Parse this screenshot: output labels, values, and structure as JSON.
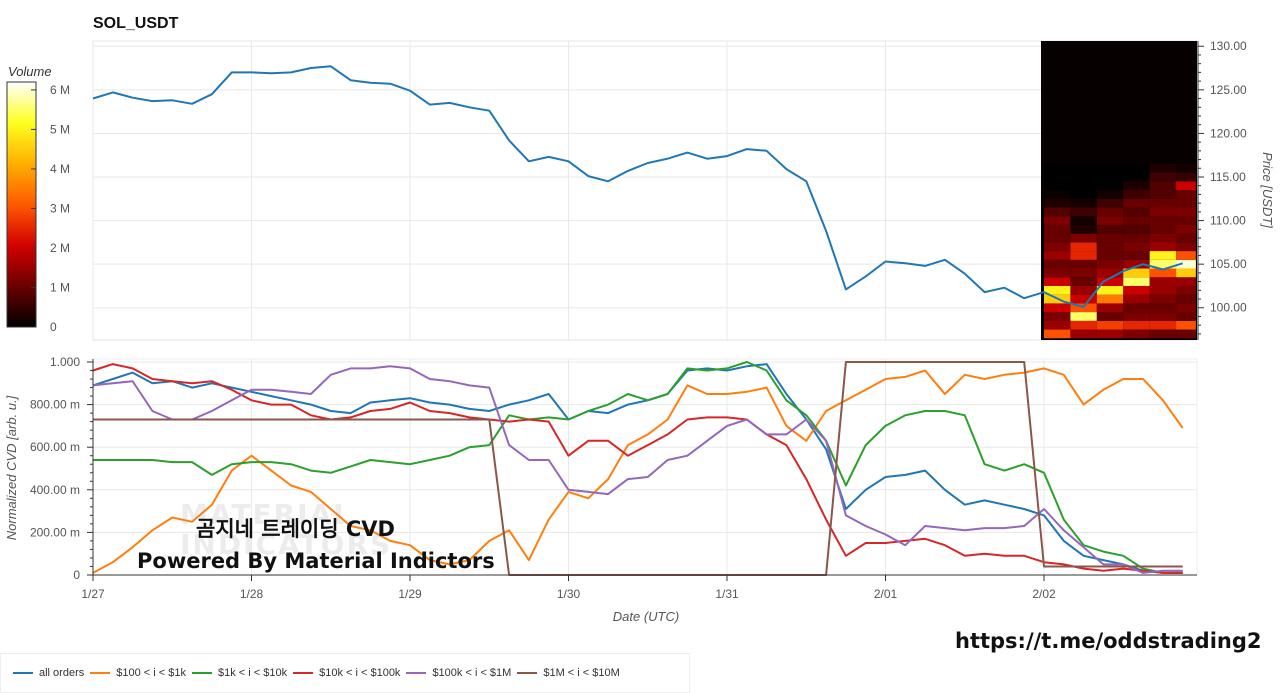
{
  "title": "SOL_USDT",
  "watermark": {
    "line1": "곰지네 트레이딩 CVD",
    "line2": "Powered By Material Indictors",
    "faint_logo": "MATERIAL INDICATORS"
  },
  "url": "https://t.me/oddstrading2",
  "chart_data": [
    {
      "type": "line",
      "name_panel": "price",
      "title": "SOL_USDT",
      "ylabel": "Price [USDT]",
      "ylim": [
        96.3,
        130.6
      ],
      "yticks": [
        "100.00",
        "105.00",
        "110.00",
        "115.00",
        "120.00",
        "125.00",
        "130.00"
      ],
      "xlim": [
        "1/27 00:00",
        "2/02 23:00"
      ],
      "grid": true,
      "color": "#1f77b4",
      "x": [
        "1/27 00:00",
        "1/27 03:00",
        "1/27 06:00",
        "1/27 09:00",
        "1/27 12:00",
        "1/27 15:00",
        "1/27 18:00",
        "1/27 21:00",
        "1/28 00:00",
        "1/28 03:00",
        "1/28 06:00",
        "1/28 09:00",
        "1/28 12:00",
        "1/28 15:00",
        "1/28 18:00",
        "1/28 21:00",
        "1/29 00:00",
        "1/29 03:00",
        "1/29 06:00",
        "1/29 09:00",
        "1/29 12:00",
        "1/29 15:00",
        "1/29 18:00",
        "1/29 21:00",
        "1/30 00:00",
        "1/30 03:00",
        "1/30 06:00",
        "1/30 09:00",
        "1/30 12:00",
        "1/30 15:00",
        "1/30 18:00",
        "1/30 21:00",
        "1/31 00:00",
        "1/31 03:00",
        "1/31 06:00",
        "1/31 09:00",
        "1/31 12:00",
        "1/31 15:00",
        "1/31 18:00",
        "1/31 21:00",
        "2/01 00:00",
        "2/01 03:00",
        "2/01 06:00",
        "2/01 09:00",
        "2/01 12:00",
        "2/01 15:00",
        "2/01 18:00",
        "2/01 21:00",
        "2/02 00:00",
        "2/02 03:00",
        "2/02 06:00",
        "2/02 09:00",
        "2/02 12:00",
        "2/02 15:00",
        "2/02 18:00",
        "2/02 21:00"
      ],
      "values": [
        124.0,
        124.7,
        124.1,
        123.7,
        123.8,
        123.4,
        124.5,
        127.0,
        127.0,
        126.9,
        127.0,
        127.5,
        127.7,
        126.1,
        125.8,
        125.7,
        124.9,
        123.3,
        123.5,
        123.0,
        122.6,
        119.2,
        116.8,
        117.3,
        116.8,
        115.1,
        114.5,
        115.7,
        116.6,
        117.1,
        117.8,
        117.1,
        117.4,
        118.2,
        118.0,
        115.9,
        114.5,
        108.8,
        102.1,
        103.6,
        105.3,
        105.1,
        104.8,
        105.5,
        103.9,
        101.8,
        102.3,
        101.1,
        101.8,
        100.7,
        100.1,
        103.0,
        104.2,
        105.0,
        104.4,
        105.1
      ],
      "heatmap": {
        "colorbar_label": "Volume",
        "colorbar_ticks": [
          "0",
          "1 M",
          "2 M",
          "3 M",
          "4 M",
          "5 M",
          "6 M"
        ],
        "range_M": [
          0,
          6.2
        ],
        "colormap": [
          "#000000",
          "#6b0000",
          "#d40000",
          "#ff5a00",
          "#ffb000",
          "#ffff20",
          "#ffffff"
        ],
        "price_levels": [
          97,
          98,
          99,
          100,
          101,
          102,
          103,
          104,
          105,
          106,
          107,
          108,
          109,
          110,
          111,
          112,
          113,
          114,
          115,
          116
        ],
        "columns": [
          {
            "start": "2/02 00:00",
            "end": "2/02 04:00",
            "volume_M": [
              3.0,
              1.5,
              1.2,
              2.0,
              4.5,
              5.0,
              2.0,
              1.2,
              1.0,
              1.5,
              1.2,
              1.0,
              1.0,
              1.2,
              0.8,
              0.3,
              0.1,
              0,
              0,
              0
            ]
          },
          {
            "start": "2/02 04:00",
            "end": "2/02 08:00",
            "volume_M": [
              1.5,
              2.5,
              5.5,
              3.0,
              2.0,
              1.5,
              1.0,
              1.2,
              1.0,
              2.5,
              2.5,
              1.2,
              0.3,
              0.2,
              0.6,
              0.2,
              0,
              0,
              0,
              0
            ]
          },
          {
            "start": "2/02 08:00",
            "end": "2/02 12:00",
            "volume_M": [
              1.5,
              2.8,
              1.0,
              1.5,
              3.5,
              5.0,
              2.0,
              1.5,
              1.2,
              1.0,
              1.0,
              1.0,
              0.8,
              1.2,
              1.0,
              0.6,
              0.2,
              0,
              0,
              0
            ]
          },
          {
            "start": "2/02 12:00",
            "end": "2/02 16:00",
            "volume_M": [
              1.2,
              2.5,
              1.2,
              1.0,
              1.5,
              2.0,
              5.5,
              4.5,
              1.5,
              1.0,
              1.2,
              1.0,
              0.8,
              1.0,
              0.8,
              1.0,
              0.6,
              0.3,
              0,
              0
            ]
          },
          {
            "start": "2/02 16:00",
            "end": "2/02 20:00",
            "volume_M": [
              1.0,
              2.5,
              1.2,
              1.0,
              1.2,
              1.5,
              1.5,
              3.0,
              5.5,
              5.0,
              1.5,
              1.2,
              1.0,
              1.0,
              1.2,
              1.0,
              0.8,
              0.8,
              0.6,
              0.3
            ]
          },
          {
            "start": "2/02 20:00",
            "end": "2/02 23:00",
            "volume_M": [
              1.0,
              3.0,
              1.0,
              1.2,
              1.0,
              1.2,
              1.5,
              4.5,
              6.0,
              3.0,
              1.2,
              1.0,
              1.2,
              1.0,
              1.2,
              1.0,
              1.0,
              2.0,
              0.5,
              0.2
            ]
          }
        ]
      }
    },
    {
      "type": "line",
      "name_panel": "cvd",
      "xlabel": "Date (UTC)",
      "ylabel": "Normalized CVD [arb. u.]",
      "ylim": [
        0,
        1
      ],
      "yticks": [
        "0",
        "200.00 m",
        "400.00 m",
        "600.00 m",
        "800.00 m",
        "1.000"
      ],
      "xticks": [
        "1/27",
        "1/28",
        "1/29",
        "1/30",
        "1/31",
        "2/01",
        "2/02"
      ],
      "xlim": [
        "1/27 00:00",
        "2/02 23:00"
      ],
      "grid": true,
      "legend_placement": "bottom",
      "series": [
        {
          "name": "all orders",
          "color": "#1f77b4",
          "values": [
            0.89,
            0.92,
            0.95,
            0.9,
            0.91,
            0.88,
            0.9,
            0.88,
            0.86,
            0.84,
            0.82,
            0.8,
            0.77,
            0.76,
            0.81,
            0.82,
            0.83,
            0.81,
            0.8,
            0.78,
            0.77,
            0.8,
            0.82,
            0.85,
            0.73,
            0.77,
            0.76,
            0.8,
            0.82,
            0.85,
            0.96,
            0.97,
            0.96,
            0.98,
            0.99,
            0.85,
            0.73,
            0.59,
            0.31,
            0.4,
            0.46,
            0.47,
            0.49,
            0.4,
            0.33,
            0.35,
            0.33,
            0.31,
            0.28,
            0.16,
            0.09,
            0.07,
            0.05,
            0.02,
            0.01,
            0.01
          ]
        },
        {
          "name": "$100 < i < $1k",
          "color": "#ff7f0e",
          "values": [
            0.01,
            0.06,
            0.13,
            0.21,
            0.27,
            0.25,
            0.33,
            0.49,
            0.56,
            0.49,
            0.42,
            0.39,
            0.31,
            0.23,
            0.21,
            0.16,
            0.14,
            0.07,
            0.05,
            0.07,
            0.16,
            0.21,
            0.07,
            0.26,
            0.39,
            0.36,
            0.45,
            0.61,
            0.66,
            0.73,
            0.89,
            0.85,
            0.85,
            0.86,
            0.88,
            0.7,
            0.63,
            0.77,
            0.82,
            0.87,
            0.92,
            0.93,
            0.96,
            0.85,
            0.94,
            0.92,
            0.94,
            0.95,
            0.97,
            0.94,
            0.8,
            0.87,
            0.92,
            0.92,
            0.82,
            0.69
          ]
        },
        {
          "name": "$1k < i < $10k",
          "color": "#2ca02c",
          "values": [
            0.54,
            0.54,
            0.54,
            0.54,
            0.53,
            0.53,
            0.47,
            0.52,
            0.53,
            0.53,
            0.52,
            0.49,
            0.48,
            0.51,
            0.54,
            0.53,
            0.52,
            0.54,
            0.56,
            0.6,
            0.61,
            0.75,
            0.73,
            0.74,
            0.73,
            0.77,
            0.8,
            0.85,
            0.82,
            0.85,
            0.97,
            0.96,
            0.97,
            1.0,
            0.96,
            0.82,
            0.75,
            0.63,
            0.42,
            0.61,
            0.7,
            0.75,
            0.77,
            0.77,
            0.75,
            0.52,
            0.49,
            0.52,
            0.48,
            0.26,
            0.14,
            0.11,
            0.09,
            0.03,
            0.01,
            0.01
          ]
        },
        {
          "name": "$10k < i < $100k",
          "color": "#d62728",
          "values": [
            0.96,
            0.99,
            0.97,
            0.92,
            0.91,
            0.9,
            0.91,
            0.87,
            0.82,
            0.8,
            0.8,
            0.75,
            0.73,
            0.74,
            0.77,
            0.78,
            0.81,
            0.77,
            0.76,
            0.74,
            0.73,
            0.72,
            0.73,
            0.72,
            0.56,
            0.63,
            0.63,
            0.56,
            0.61,
            0.66,
            0.73,
            0.74,
            0.74,
            0.73,
            0.66,
            0.61,
            0.45,
            0.26,
            0.09,
            0.15,
            0.15,
            0.16,
            0.17,
            0.14,
            0.09,
            0.1,
            0.09,
            0.09,
            0.06,
            0.05,
            0.03,
            0.02,
            0.03,
            0.02,
            0.01,
            0.01
          ]
        },
        {
          "name": "$100k < i < $1M",
          "color": "#9467bd",
          "values": [
            0.89,
            0.9,
            0.91,
            0.77,
            0.73,
            0.73,
            0.77,
            0.82,
            0.87,
            0.87,
            0.86,
            0.85,
            0.94,
            0.97,
            0.97,
            0.98,
            0.97,
            0.92,
            0.91,
            0.89,
            0.88,
            0.61,
            0.54,
            0.54,
            0.4,
            0.39,
            0.38,
            0.45,
            0.46,
            0.54,
            0.56,
            0.63,
            0.7,
            0.73,
            0.66,
            0.66,
            0.73,
            0.63,
            0.28,
            0.23,
            0.19,
            0.14,
            0.23,
            0.22,
            0.21,
            0.22,
            0.22,
            0.23,
            0.31,
            0.21,
            0.13,
            0.05,
            0.05,
            0.01,
            0.02,
            0.02
          ]
        },
        {
          "name": "$1M < i < $10M",
          "color": "#8c564b",
          "values": [
            0.73,
            0.73,
            0.73,
            0.73,
            0.73,
            0.73,
            0.73,
            0.73,
            0.73,
            0.73,
            0.73,
            0.73,
            0.73,
            0.73,
            0.73,
            0.73,
            0.73,
            0.73,
            0.73,
            0.73,
            0.73,
            0,
            0,
            0,
            0,
            0,
            0,
            0,
            0,
            0,
            0,
            0,
            0,
            0,
            0,
            0,
            0,
            0,
            1,
            1,
            1,
            1,
            1,
            1,
            1,
            1,
            1,
            1,
            0.04,
            0.04,
            0.04,
            0.04,
            0.04,
            0.04,
            0.04,
            0.04
          ]
        }
      ]
    }
  ]
}
